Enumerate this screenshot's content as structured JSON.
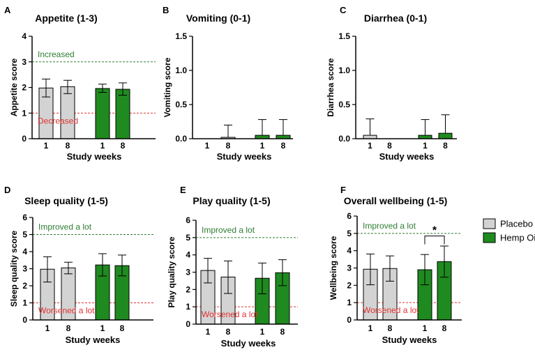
{
  "colors": {
    "placebo": "#d3d3d3",
    "hemp": "#1f8a1f",
    "upper_line": "#2e7d32",
    "upper_text": "#2e7d32",
    "lower_line": "#e03030",
    "lower_text": "#e03030",
    "axis": "#000000"
  },
  "legend": {
    "placebo": "Placebo",
    "hemp": "Hemp Oil"
  },
  "chart_data": [
    {
      "type": "bar",
      "panel": "A",
      "title": "Appetite (1-3)",
      "ylabel": "Appetite score",
      "xlabel": "Study weeks",
      "ylim": [
        0,
        4
      ],
      "yticks": [
        "0",
        "1",
        "2",
        "3",
        "4"
      ],
      "categories": [
        "1",
        "8",
        "1",
        "8"
      ],
      "groups": [
        "placebo",
        "placebo",
        "hemp",
        "hemp"
      ],
      "values": [
        1.98,
        2.03,
        1.96,
        1.93
      ],
      "err_lo": [
        0.35,
        0.27,
        0.15,
        0.23
      ],
      "err_hi": [
        0.35,
        0.25,
        0.17,
        0.25
      ],
      "ref_upper": {
        "value": 3,
        "label": "Increased"
      },
      "ref_lower": {
        "value": 1,
        "label": "Decreased"
      },
      "sig": null
    },
    {
      "type": "bar",
      "panel": "B",
      "title": "Vomiting (0-1)",
      "ylabel": "Vomiting score",
      "xlabel": "Study weeks",
      "ylim": [
        0,
        1.5
      ],
      "yticks": [
        "0.0",
        "0.5",
        "1.0",
        "1.5"
      ],
      "categories": [
        "1",
        "8",
        "1",
        "8"
      ],
      "groups": [
        "placebo",
        "placebo",
        "hemp",
        "hemp"
      ],
      "values": [
        0.0,
        0.02,
        0.05,
        0.05
      ],
      "err_lo": [
        0,
        0,
        0,
        0
      ],
      "err_hi": [
        0,
        0.18,
        0.23,
        0.23
      ],
      "ref_upper": null,
      "ref_lower": null,
      "sig": null
    },
    {
      "type": "bar",
      "panel": "C",
      "title": "Diarrhea (0-1)",
      "ylabel": "Diarrhea score",
      "xlabel": "Study weeks",
      "ylim": [
        0,
        1.5
      ],
      "yticks": [
        "0.0",
        "0.5",
        "1.0",
        "1.5"
      ],
      "categories": [
        "1",
        "8",
        "1",
        "8"
      ],
      "groups": [
        "placebo",
        "placebo",
        "hemp",
        "hemp"
      ],
      "values": [
        0.05,
        0.0,
        0.05,
        0.08
      ],
      "err_lo": [
        0,
        0,
        0,
        0
      ],
      "err_hi": [
        0.24,
        0,
        0.23,
        0.27
      ],
      "ref_upper": null,
      "ref_lower": null,
      "sig": null
    },
    {
      "type": "bar",
      "panel": "D",
      "title": "Sleep quality (1-5)",
      "ylabel": "Sleep quality score",
      "xlabel": "Study weeks",
      "ylim": [
        0,
        6
      ],
      "yticks": [
        "0",
        "1",
        "2",
        "3",
        "4",
        "5",
        "6"
      ],
      "categories": [
        "1",
        "8",
        "1",
        "8"
      ],
      "groups": [
        "placebo",
        "placebo",
        "hemp",
        "hemp"
      ],
      "values": [
        2.97,
        3.05,
        3.22,
        3.18
      ],
      "err_lo": [
        0.75,
        0.35,
        0.65,
        0.6
      ],
      "err_hi": [
        0.73,
        0.33,
        0.66,
        0.62
      ],
      "ref_upper": {
        "value": 5,
        "label": "Improved a lot"
      },
      "ref_lower": {
        "value": 1,
        "label": "Worsened a lot"
      },
      "sig": null
    },
    {
      "type": "bar",
      "panel": "E",
      "title": "Play quality (1-5)",
      "ylabel": "Play quality score",
      "xlabel": "Study weeks",
      "ylim": [
        0,
        6
      ],
      "yticks": [
        "0",
        "1",
        "2",
        "3",
        "4",
        "5",
        "6"
      ],
      "categories": [
        "1",
        "8",
        "1",
        "8"
      ],
      "groups": [
        "placebo",
        "placebo",
        "hemp",
        "hemp"
      ],
      "values": [
        3.1,
        2.72,
        2.65,
        2.97
      ],
      "err_lo": [
        0.72,
        0.95,
        0.9,
        0.75
      ],
      "err_hi": [
        0.7,
        0.93,
        0.88,
        0.75
      ],
      "ref_upper": {
        "value": 5,
        "label": "Improved a lot"
      },
      "ref_lower": {
        "value": 1,
        "label": "Worsened a lot"
      },
      "sig": null
    },
    {
      "type": "bar",
      "panel": "F",
      "title": "Overall wellbeing (1-5)",
      "ylabel": "Wellbeing score",
      "xlabel": "Study weeks",
      "ylim": [
        0,
        6
      ],
      "yticks": [
        "0",
        "1",
        "2",
        "3",
        "4",
        "5",
        "6"
      ],
      "categories": [
        "1",
        "8",
        "1",
        "8"
      ],
      "groups": [
        "placebo",
        "placebo",
        "hemp",
        "hemp"
      ],
      "values": [
        2.93,
        2.97,
        2.9,
        3.37
      ],
      "err_lo": [
        0.9,
        0.73,
        0.87,
        0.9
      ],
      "err_hi": [
        0.88,
        0.73,
        0.88,
        0.9
      ],
      "ref_upper": {
        "value": 5,
        "label": "Improved a lot"
      },
      "ref_lower": {
        "value": 1,
        "label": "Worsened a lot"
      },
      "sig": {
        "from": 2,
        "to": 3,
        "label": "*"
      }
    }
  ]
}
